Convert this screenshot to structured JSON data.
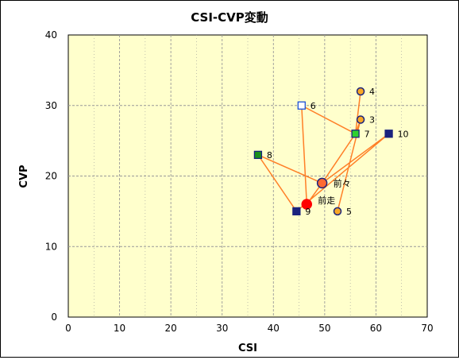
{
  "chart_data": {
    "type": "scatter",
    "title": "CSI-CVP変動",
    "xlabel": "CSI",
    "ylabel": "CVP",
    "xlim": [
      0,
      70
    ],
    "ylim": [
      0,
      40
    ],
    "xticks": [
      0,
      10,
      20,
      30,
      40,
      50,
      60,
      70
    ],
    "yticks": [
      0,
      10,
      20,
      30,
      40
    ],
    "grid": true,
    "colors": {
      "plot_background": "#ffffcc",
      "grid": "#999999",
      "connector": "#ff7f27",
      "navy": "#1a237e",
      "orange": "#f9a825",
      "green": "#2fd12f",
      "dark_green": "#1b8f1b",
      "red": "#ff0000",
      "orange_red": "#ff6a33",
      "hollow_blue": "#1a4fd6"
    },
    "points": [
      {
        "label": "4",
        "x": 57,
        "y": 32,
        "marker": "circle",
        "fill": "#f9a825",
        "stroke": "#1a237e",
        "size": "small"
      },
      {
        "label": "3",
        "x": 57,
        "y": 28,
        "marker": "circle",
        "fill": "#f9a825",
        "stroke": "#1a237e",
        "size": "small"
      },
      {
        "label": "6",
        "x": 45.5,
        "y": 30,
        "marker": "square",
        "fill": "#ffffff",
        "stroke": "#1a4fd6",
        "size": "small"
      },
      {
        "label": "7",
        "x": 56,
        "y": 26,
        "marker": "square",
        "fill": "#2fd12f",
        "stroke": "#1a237e",
        "size": "small"
      },
      {
        "label": "10",
        "x": 62.5,
        "y": 26,
        "marker": "square",
        "fill": "#1a237e",
        "stroke": "#1a237e",
        "size": "small"
      },
      {
        "label": "8",
        "x": 37,
        "y": 23,
        "marker": "square",
        "fill": "#1b8f1b",
        "stroke": "#1a237e",
        "size": "small"
      },
      {
        "label": "前々",
        "x": 49.5,
        "y": 19,
        "marker": "circle",
        "fill": "#ff6a33",
        "stroke": "#1a237e",
        "size": "large"
      },
      {
        "label": "前走",
        "x": 46.5,
        "y": 16,
        "marker": "circle",
        "fill": "#ff0000",
        "stroke": "#ff0000",
        "size": "large"
      },
      {
        "label": "9",
        "x": 44.5,
        "y": 15,
        "marker": "square",
        "fill": "#1a237e",
        "stroke": "#1a237e",
        "size": "small"
      },
      {
        "label": "5",
        "x": 52.5,
        "y": 15,
        "marker": "circle",
        "fill": "#f9a825",
        "stroke": "#1a237e",
        "size": "small"
      }
    ],
    "path_order": [
      "4",
      "7",
      "6",
      "前走",
      "前々",
      "8",
      "9",
      "10",
      "前々",
      "7",
      "3",
      "5"
    ]
  }
}
